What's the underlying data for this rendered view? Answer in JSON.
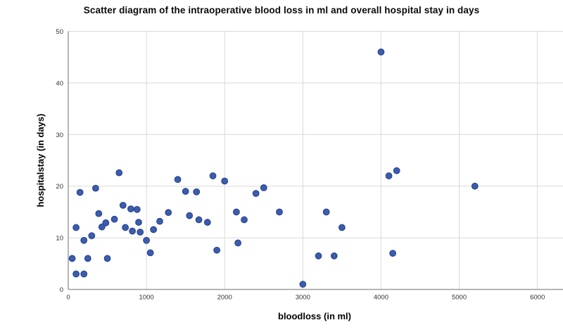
{
  "chart_data": {
    "type": "scatter",
    "title": "Scatter diagram of the intraoperative blood loss in ml and overall hospital stay in days",
    "xlabel": "bloodloss (in ml)",
    "ylabel": "hospitalstay (in days)",
    "xlim": [
      0,
      6300
    ],
    "ylim": [
      0,
      50
    ],
    "x_ticks": [
      0,
      1000,
      2000,
      3000,
      4000,
      5000,
      6000
    ],
    "y_ticks": [
      0,
      10,
      20,
      30,
      40,
      50
    ],
    "grid": true,
    "legend": "none",
    "points": [
      [
        50,
        6
      ],
      [
        100,
        3
      ],
      [
        200,
        3
      ],
      [
        100,
        12
      ],
      [
        150,
        18.8
      ],
      [
        200,
        9.5
      ],
      [
        250,
        6
      ],
      [
        300,
        10.4
      ],
      [
        350,
        19.6
      ],
      [
        390,
        14.7
      ],
      [
        430,
        12.1
      ],
      [
        480,
        12.9
      ],
      [
        500,
        6
      ],
      [
        590,
        13.6
      ],
      [
        650,
        22.6
      ],
      [
        700,
        16.3
      ],
      [
        730,
        12
      ],
      [
        800,
        15.6
      ],
      [
        820,
        11.3
      ],
      [
        880,
        15.5
      ],
      [
        900,
        13
      ],
      [
        920,
        11.1
      ],
      [
        1000,
        9.5
      ],
      [
        1050,
        7.1
      ],
      [
        1090,
        11.6
      ],
      [
        1170,
        13.2
      ],
      [
        1280,
        14.9
      ],
      [
        1400,
        21.3
      ],
      [
        1500,
        19
      ],
      [
        1550,
        14.3
      ],
      [
        1640,
        18.9
      ],
      [
        1670,
        13.5
      ],
      [
        1780,
        13
      ],
      [
        1850,
        22
      ],
      [
        1900,
        7.6
      ],
      [
        2000,
        21
      ],
      [
        2150,
        15
      ],
      [
        2170,
        9
      ],
      [
        2250,
        13.5
      ],
      [
        2400,
        18.6
      ],
      [
        2500,
        19.7
      ],
      [
        2700,
        15
      ],
      [
        3000,
        1
      ],
      [
        3200,
        6.5
      ],
      [
        3300,
        15
      ],
      [
        3400,
        6.5
      ],
      [
        3500,
        12
      ],
      [
        4000,
        46
      ],
      [
        4100,
        22
      ],
      [
        4150,
        7
      ],
      [
        4200,
        23
      ],
      [
        5200,
        20
      ]
    ]
  },
  "colors": {
    "point_fill": "#3B5EAB",
    "point_stroke": "#2B4495",
    "grid": "#D9D9D9",
    "axis": "#9E9E9E",
    "tick_text": "#333333",
    "axis_title_text": "#000000",
    "background": "#FFFFFF"
  }
}
